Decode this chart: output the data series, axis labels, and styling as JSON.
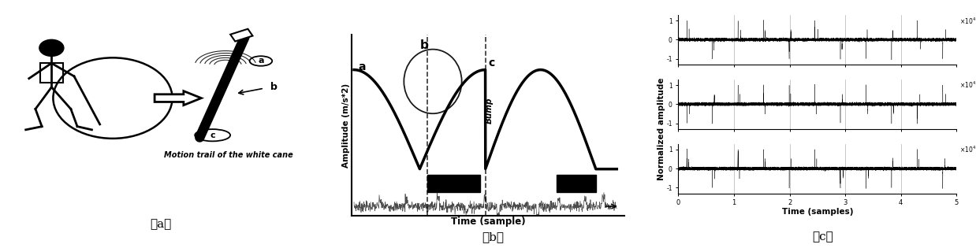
{
  "fig_width": 12.38,
  "fig_height": 3.15,
  "bg_color": "#ffffff",
  "panel_a_label": "（a）",
  "panel_b_label": "（b）",
  "panel_c_label": "（c）",
  "panel_b_xlabel": "Time (sample)",
  "panel_b_ylabel": "Amplitude (m/s*2)",
  "panel_c_xlabel": "Time (samples)",
  "panel_c_ylabel": "Normalized amplitude",
  "bump_label": "Bump",
  "label_a": "a",
  "label_b": "b",
  "label_c": "c"
}
